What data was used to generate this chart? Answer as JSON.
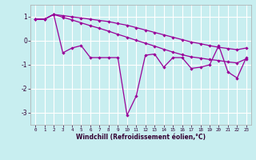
{
  "xlabel": "Windchill (Refroidissement éolien,°C)",
  "background_color": "#c8eef0",
  "grid_color": "#ffffff",
  "line_color": "#990099",
  "x": [
    0,
    1,
    2,
    3,
    4,
    5,
    6,
    7,
    8,
    9,
    10,
    11,
    12,
    13,
    14,
    15,
    16,
    17,
    18,
    19,
    20,
    21,
    22,
    23
  ],
  "upper": [
    0.9,
    0.9,
    1.1,
    1.05,
    1.0,
    0.95,
    0.9,
    0.85,
    0.8,
    0.72,
    0.65,
    0.55,
    0.45,
    0.35,
    0.25,
    0.15,
    0.05,
    -0.05,
    -0.12,
    -0.2,
    -0.27,
    -0.32,
    -0.37,
    -0.3
  ],
  "lower_band": [
    0.9,
    0.9,
    1.1,
    0.98,
    0.87,
    0.75,
    0.63,
    0.52,
    0.4,
    0.27,
    0.15,
    0.02,
    -0.1,
    -0.22,
    -0.35,
    -0.47,
    -0.58,
    -0.67,
    -0.72,
    -0.78,
    -0.82,
    -0.88,
    -0.92,
    -0.75
  ],
  "windchill": [
    0.9,
    0.9,
    1.1,
    -0.5,
    -0.3,
    -0.2,
    -0.7,
    -0.7,
    -0.7,
    -0.7,
    -3.1,
    -2.3,
    -0.6,
    -0.55,
    -1.1,
    -0.7,
    -0.7,
    -1.15,
    -1.1,
    -1.0,
    -0.2,
    -1.3,
    -1.55,
    -0.7
  ],
  "ylim": [
    -3.5,
    1.5
  ],
  "xlim": [
    -0.5,
    23.5
  ],
  "yticks": [
    -3,
    -2,
    -1,
    0,
    1
  ],
  "xticks": [
    0,
    1,
    2,
    3,
    4,
    5,
    6,
    7,
    8,
    9,
    10,
    11,
    12,
    13,
    14,
    15,
    16,
    17,
    18,
    19,
    20,
    21,
    22,
    23
  ]
}
